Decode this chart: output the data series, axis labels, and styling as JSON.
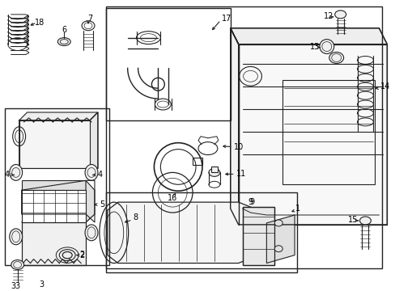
{
  "bg_color": "#ffffff",
  "line_color": "#222222",
  "fig_w": 4.89,
  "fig_h": 3.6,
  "dpi": 100
}
